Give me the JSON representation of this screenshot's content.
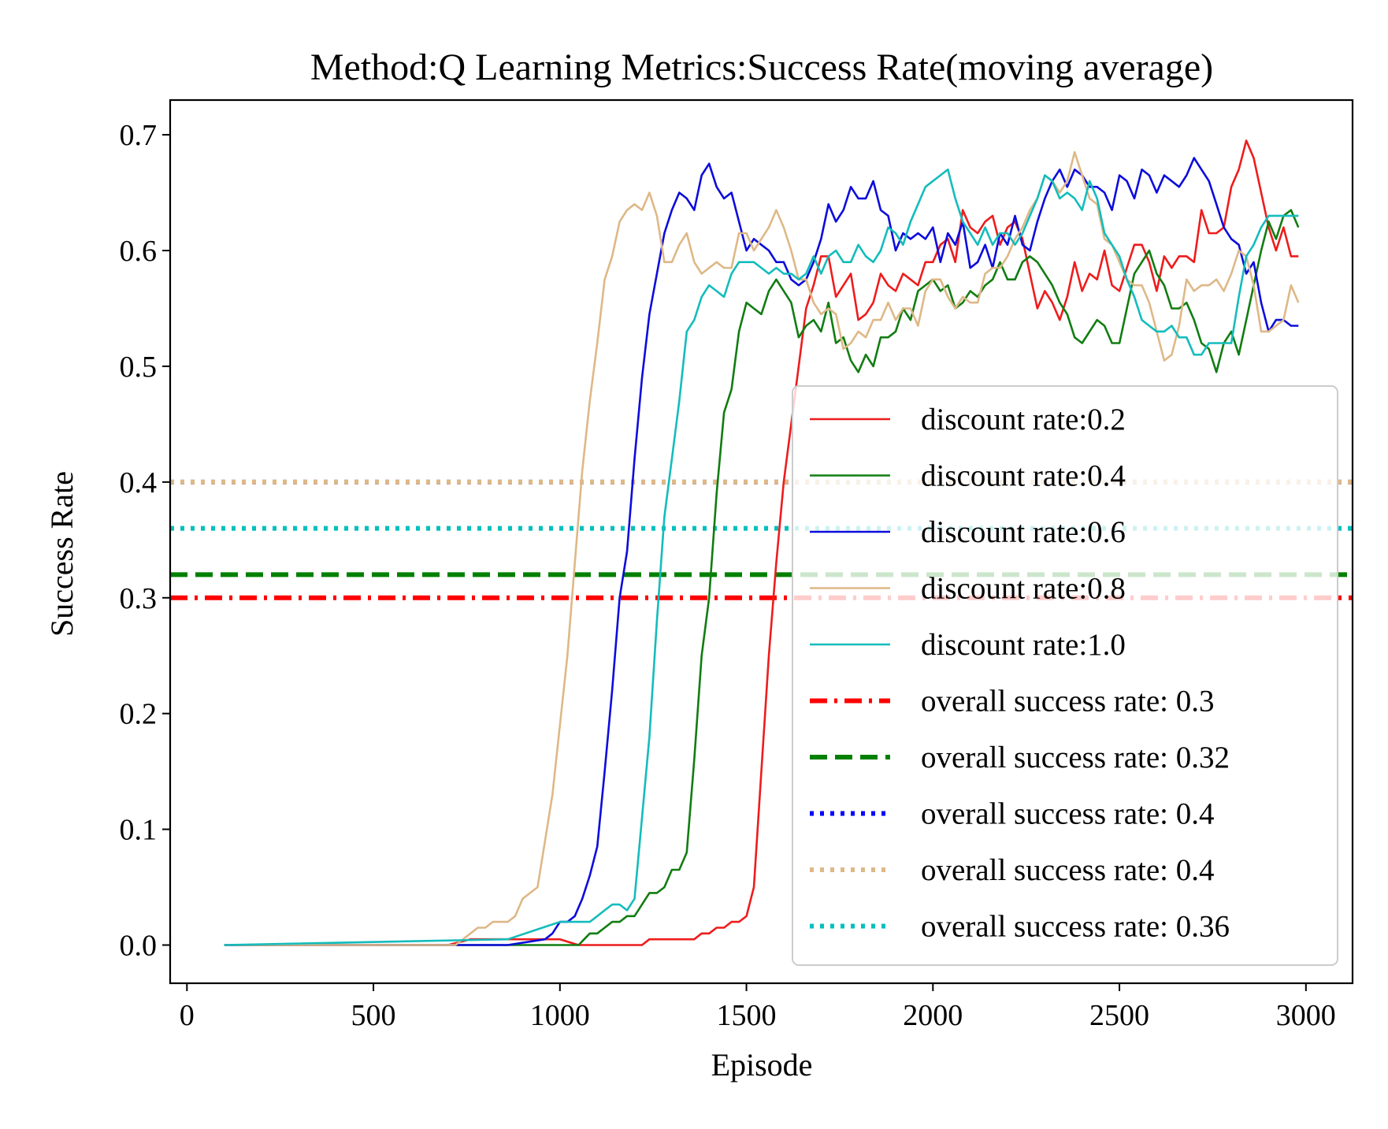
{
  "chart_data": {
    "type": "line",
    "title": "Method:Q Learning   Metrics:Success Rate(moving average)",
    "xlabel": "Episode",
    "ylabel": "Success Rate",
    "xlim": [
      -45,
      3125
    ],
    "ylim": [
      -0.033,
      0.73
    ],
    "xticks": [
      0,
      500,
      1000,
      1500,
      2000,
      2500,
      3000
    ],
    "xtick_labels": [
      "0",
      "500",
      "1000",
      "1500",
      "2000",
      "2500",
      "3000"
    ],
    "yticks": [
      0.0,
      0.1,
      0.2,
      0.3,
      0.4,
      0.5,
      0.6,
      0.7
    ],
    "ytick_labels": [
      "0.0",
      "0.1",
      "0.2",
      "0.3",
      "0.4",
      "0.5",
      "0.6",
      "0.7"
    ],
    "grid": false,
    "legend_position": "lower-right",
    "series": [
      {
        "name": "discount rate:0.2",
        "color": "#ee1c1c",
        "style": "solid",
        "x": [
          100,
          700,
          760,
          1000,
          1050,
          1100,
          1150,
          1200,
          1220,
          1240,
          1280,
          1320,
          1360,
          1380,
          1400,
          1420,
          1440,
          1460,
          1480,
          1500,
          1520,
          1540,
          1560,
          1580,
          1600,
          1620,
          1640,
          1660,
          1680,
          1700,
          1720,
          1740,
          1760,
          1780,
          1800,
          1820,
          1840,
          1860,
          1880,
          1900,
          1920,
          1940,
          1960,
          1980,
          2000,
          2020,
          2040,
          2060,
          2080,
          2100,
          2120,
          2140,
          2160,
          2180,
          2200,
          2220,
          2240,
          2260,
          2280,
          2300,
          2320,
          2340,
          2360,
          2380,
          2400,
          2420,
          2440,
          2460,
          2480,
          2500,
          2520,
          2540,
          2560,
          2580,
          2600,
          2620,
          2640,
          2660,
          2680,
          2700,
          2720,
          2740,
          2760,
          2780,
          2800,
          2820,
          2840,
          2860,
          2880,
          2900,
          2920,
          2940,
          2960,
          2980
        ],
        "y": [
          0,
          0,
          0.005,
          0.005,
          0,
          0,
          0,
          0,
          0,
          0.005,
          0.005,
          0.005,
          0.005,
          0.01,
          0.01,
          0.015,
          0.015,
          0.02,
          0.02,
          0.025,
          0.05,
          0.15,
          0.25,
          0.33,
          0.4,
          0.45,
          0.5,
          0.55,
          0.57,
          0.595,
          0.595,
          0.56,
          0.57,
          0.58,
          0.54,
          0.545,
          0.555,
          0.58,
          0.57,
          0.565,
          0.58,
          0.575,
          0.57,
          0.59,
          0.59,
          0.605,
          0.61,
          0.59,
          0.635,
          0.62,
          0.615,
          0.625,
          0.63,
          0.605,
          0.62,
          0.625,
          0.61,
          0.58,
          0.55,
          0.565,
          0.555,
          0.54,
          0.56,
          0.59,
          0.565,
          0.58,
          0.575,
          0.6,
          0.57,
          0.565,
          0.585,
          0.605,
          0.605,
          0.59,
          0.565,
          0.595,
          0.585,
          0.595,
          0.595,
          0.59,
          0.635,
          0.615,
          0.615,
          0.62,
          0.655,
          0.67,
          0.695,
          0.68,
          0.65,
          0.62,
          0.6,
          0.62,
          0.595,
          0.595
        ]
      },
      {
        "name": "discount rate:0.4",
        "color": "#117d11",
        "style": "solid",
        "x": [
          100,
          1050,
          1080,
          1100,
          1120,
          1140,
          1160,
          1180,
          1200,
          1220,
          1240,
          1260,
          1280,
          1300,
          1320,
          1340,
          1360,
          1380,
          1400,
          1420,
          1440,
          1460,
          1480,
          1500,
          1520,
          1540,
          1560,
          1580,
          1600,
          1620,
          1640,
          1660,
          1680,
          1700,
          1720,
          1740,
          1760,
          1780,
          1800,
          1820,
          1840,
          1860,
          1880,
          1900,
          1920,
          1940,
          1960,
          1980,
          2000,
          2020,
          2040,
          2060,
          2080,
          2100,
          2120,
          2140,
          2160,
          2180,
          2200,
          2220,
          2240,
          2260,
          2280,
          2300,
          2320,
          2340,
          2360,
          2380,
          2400,
          2420,
          2440,
          2460,
          2480,
          2500,
          2520,
          2540,
          2560,
          2580,
          2600,
          2620,
          2640,
          2660,
          2680,
          2700,
          2720,
          2740,
          2760,
          2780,
          2800,
          2820,
          2840,
          2860,
          2880,
          2900,
          2920,
          2940,
          2960,
          2980
        ],
        "y": [
          0,
          0,
          0.01,
          0.01,
          0.015,
          0.02,
          0.02,
          0.025,
          0.025,
          0.035,
          0.045,
          0.045,
          0.05,
          0.065,
          0.065,
          0.08,
          0.16,
          0.25,
          0.3,
          0.39,
          0.46,
          0.48,
          0.53,
          0.555,
          0.55,
          0.545,
          0.565,
          0.575,
          0.565,
          0.555,
          0.525,
          0.535,
          0.54,
          0.53,
          0.555,
          0.52,
          0.525,
          0.505,
          0.495,
          0.51,
          0.5,
          0.525,
          0.525,
          0.53,
          0.55,
          0.54,
          0.565,
          0.57,
          0.575,
          0.565,
          0.57,
          0.55,
          0.555,
          0.565,
          0.56,
          0.57,
          0.575,
          0.59,
          0.575,
          0.575,
          0.59,
          0.595,
          0.59,
          0.58,
          0.57,
          0.555,
          0.545,
          0.525,
          0.52,
          0.53,
          0.54,
          0.535,
          0.52,
          0.52,
          0.55,
          0.58,
          0.59,
          0.6,
          0.58,
          0.57,
          0.55,
          0.55,
          0.555,
          0.54,
          0.52,
          0.515,
          0.495,
          0.52,
          0.53,
          0.51,
          0.54,
          0.57,
          0.6,
          0.625,
          0.61,
          0.63,
          0.635,
          0.62
        ]
      },
      {
        "name": "discount rate:0.6",
        "color": "#0c0cdc",
        "style": "solid",
        "x": [
          100,
          860,
          960,
          980,
          1000,
          1020,
          1040,
          1060,
          1080,
          1100,
          1120,
          1140,
          1160,
          1180,
          1200,
          1220,
          1240,
          1260,
          1280,
          1300,
          1320,
          1340,
          1360,
          1380,
          1400,
          1420,
          1440,
          1460,
          1480,
          1500,
          1520,
          1540,
          1560,
          1580,
          1600,
          1620,
          1640,
          1660,
          1680,
          1700,
          1720,
          1740,
          1760,
          1780,
          1800,
          1820,
          1840,
          1860,
          1880,
          1900,
          1920,
          1940,
          1960,
          1980,
          2000,
          2020,
          2040,
          2060,
          2080,
          2100,
          2120,
          2140,
          2160,
          2180,
          2200,
          2220,
          2240,
          2260,
          2280,
          2300,
          2320,
          2340,
          2360,
          2380,
          2400,
          2420,
          2440,
          2460,
          2480,
          2500,
          2520,
          2540,
          2560,
          2580,
          2600,
          2620,
          2640,
          2660,
          2680,
          2700,
          2720,
          2740,
          2760,
          2780,
          2800,
          2820,
          2840,
          2860,
          2880,
          2900,
          2920,
          2940,
          2960,
          2980
        ],
        "y": [
          0,
          0,
          0.005,
          0.01,
          0.02,
          0.02,
          0.025,
          0.04,
          0.06,
          0.085,
          0.15,
          0.22,
          0.3,
          0.34,
          0.42,
          0.49,
          0.545,
          0.58,
          0.615,
          0.635,
          0.65,
          0.645,
          0.635,
          0.665,
          0.675,
          0.655,
          0.645,
          0.65,
          0.625,
          0.6,
          0.61,
          0.605,
          0.6,
          0.59,
          0.59,
          0.575,
          0.57,
          0.575,
          0.59,
          0.61,
          0.64,
          0.625,
          0.635,
          0.655,
          0.645,
          0.645,
          0.66,
          0.635,
          0.63,
          0.6,
          0.615,
          0.61,
          0.615,
          0.61,
          0.62,
          0.59,
          0.615,
          0.605,
          0.625,
          0.585,
          0.59,
          0.605,
          0.585,
          0.615,
          0.605,
          0.63,
          0.605,
          0.6,
          0.625,
          0.645,
          0.66,
          0.67,
          0.655,
          0.67,
          0.665,
          0.655,
          0.655,
          0.65,
          0.635,
          0.665,
          0.66,
          0.645,
          0.67,
          0.665,
          0.65,
          0.665,
          0.66,
          0.655,
          0.665,
          0.68,
          0.67,
          0.66,
          0.64,
          0.62,
          0.61,
          0.605,
          0.58,
          0.59,
          0.555,
          0.53,
          0.54,
          0.54,
          0.535,
          0.535
        ]
      },
      {
        "name": "discount rate:0.8",
        "color": "#deb887",
        "style": "solid",
        "x": [
          100,
          720,
          740,
          760,
          780,
          800,
          820,
          840,
          860,
          880,
          900,
          920,
          940,
          960,
          980,
          1000,
          1020,
          1040,
          1060,
          1080,
          1100,
          1120,
          1140,
          1160,
          1180,
          1200,
          1220,
          1240,
          1260,
          1280,
          1300,
          1320,
          1340,
          1360,
          1380,
          1400,
          1420,
          1440,
          1460,
          1480,
          1500,
          1520,
          1540,
          1560,
          1580,
          1600,
          1620,
          1640,
          1660,
          1680,
          1700,
          1720,
          1740,
          1760,
          1780,
          1800,
          1820,
          1840,
          1860,
          1880,
          1900,
          1920,
          1940,
          1960,
          1980,
          2000,
          2020,
          2040,
          2060,
          2080,
          2100,
          2120,
          2140,
          2160,
          2180,
          2200,
          2220,
          2240,
          2260,
          2280,
          2300,
          2320,
          2340,
          2360,
          2380,
          2400,
          2420,
          2440,
          2460,
          2480,
          2500,
          2520,
          2540,
          2560,
          2580,
          2600,
          2620,
          2640,
          2660,
          2680,
          2700,
          2720,
          2740,
          2760,
          2780,
          2800,
          2820,
          2840,
          2860,
          2880,
          2900,
          2920,
          2940,
          2960,
          2980
        ],
        "y": [
          0,
          0,
          0.005,
          0.01,
          0.015,
          0.015,
          0.02,
          0.02,
          0.02,
          0.025,
          0.04,
          0.045,
          0.05,
          0.09,
          0.13,
          0.19,
          0.25,
          0.33,
          0.41,
          0.47,
          0.52,
          0.575,
          0.595,
          0.625,
          0.635,
          0.64,
          0.635,
          0.65,
          0.63,
          0.59,
          0.59,
          0.605,
          0.615,
          0.59,
          0.58,
          0.585,
          0.59,
          0.585,
          0.585,
          0.615,
          0.615,
          0.6,
          0.61,
          0.62,
          0.635,
          0.62,
          0.6,
          0.575,
          0.575,
          0.555,
          0.545,
          0.55,
          0.545,
          0.515,
          0.52,
          0.53,
          0.525,
          0.54,
          0.54,
          0.555,
          0.54,
          0.55,
          0.55,
          0.535,
          0.565,
          0.575,
          0.575,
          0.56,
          0.55,
          0.56,
          0.555,
          0.555,
          0.58,
          0.585,
          0.585,
          0.595,
          0.61,
          0.62,
          0.635,
          0.645,
          0.665,
          0.66,
          0.65,
          0.66,
          0.685,
          0.665,
          0.645,
          0.64,
          0.61,
          0.605,
          0.59,
          0.575,
          0.57,
          0.57,
          0.555,
          0.53,
          0.505,
          0.51,
          0.535,
          0.575,
          0.565,
          0.57,
          0.57,
          0.575,
          0.565,
          0.58,
          0.6,
          0.595,
          0.57,
          0.53,
          0.53,
          0.535,
          0.54,
          0.57,
          0.555
        ]
      },
      {
        "name": "discount rate:1.0",
        "color": "#14bcbc",
        "style": "solid",
        "x": [
          100,
          860,
          1000,
          1060,
          1080,
          1100,
          1120,
          1140,
          1160,
          1180,
          1200,
          1220,
          1240,
          1260,
          1280,
          1300,
          1320,
          1340,
          1360,
          1380,
          1400,
          1420,
          1440,
          1460,
          1480,
          1500,
          1520,
          1540,
          1560,
          1580,
          1600,
          1620,
          1640,
          1660,
          1680,
          1700,
          1720,
          1740,
          1760,
          1780,
          1800,
          1820,
          1840,
          1860,
          1880,
          1900,
          1920,
          1940,
          1960,
          1980,
          2000,
          2020,
          2040,
          2060,
          2080,
          2100,
          2120,
          2140,
          2160,
          2180,
          2200,
          2220,
          2240,
          2260,
          2280,
          2300,
          2320,
          2340,
          2360,
          2380,
          2400,
          2420,
          2440,
          2460,
          2480,
          2500,
          2520,
          2540,
          2560,
          2580,
          2600,
          2620,
          2640,
          2660,
          2680,
          2700,
          2720,
          2740,
          2760,
          2780,
          2800,
          2820,
          2840,
          2860,
          2880,
          2900,
          2920,
          2940,
          2960,
          2980
        ],
        "y": [
          0,
          0.005,
          0.02,
          0.02,
          0.02,
          0.025,
          0.03,
          0.035,
          0.035,
          0.03,
          0.04,
          0.11,
          0.18,
          0.28,
          0.37,
          0.42,
          0.47,
          0.53,
          0.54,
          0.56,
          0.57,
          0.565,
          0.56,
          0.58,
          0.59,
          0.59,
          0.59,
          0.585,
          0.58,
          0.585,
          0.58,
          0.58,
          0.575,
          0.58,
          0.595,
          0.58,
          0.595,
          0.6,
          0.59,
          0.59,
          0.605,
          0.595,
          0.59,
          0.6,
          0.62,
          0.615,
          0.605,
          0.625,
          0.64,
          0.655,
          0.66,
          0.665,
          0.67,
          0.645,
          0.625,
          0.615,
          0.605,
          0.62,
          0.605,
          0.615,
          0.615,
          0.605,
          0.615,
          0.63,
          0.645,
          0.665,
          0.66,
          0.645,
          0.65,
          0.645,
          0.635,
          0.66,
          0.645,
          0.615,
          0.605,
          0.595,
          0.575,
          0.56,
          0.54,
          0.535,
          0.53,
          0.53,
          0.535,
          0.525,
          0.525,
          0.51,
          0.51,
          0.52,
          0.52,
          0.52,
          0.52,
          0.56,
          0.595,
          0.605,
          0.62,
          0.63,
          0.63,
          0.63,
          0.63,
          0.63
        ]
      }
    ],
    "hlines": [
      {
        "name": "overall success rate: 0.3",
        "y": 0.3,
        "color": "#ff0000",
        "style": "dashdot"
      },
      {
        "name": "overall success rate: 0.32",
        "y": 0.32,
        "color": "#008000",
        "style": "dashed"
      },
      {
        "name": "overall success rate: 0.4",
        "y": 0.4,
        "color": "#0000ff",
        "style": "dotted"
      },
      {
        "name": "overall success rate: 0.4",
        "y": 0.4,
        "color": "#deb887",
        "style": "dotted"
      },
      {
        "name": "overall success rate: 0.36",
        "y": 0.36,
        "color": "#00bfbf",
        "style": "dotted"
      }
    ]
  }
}
